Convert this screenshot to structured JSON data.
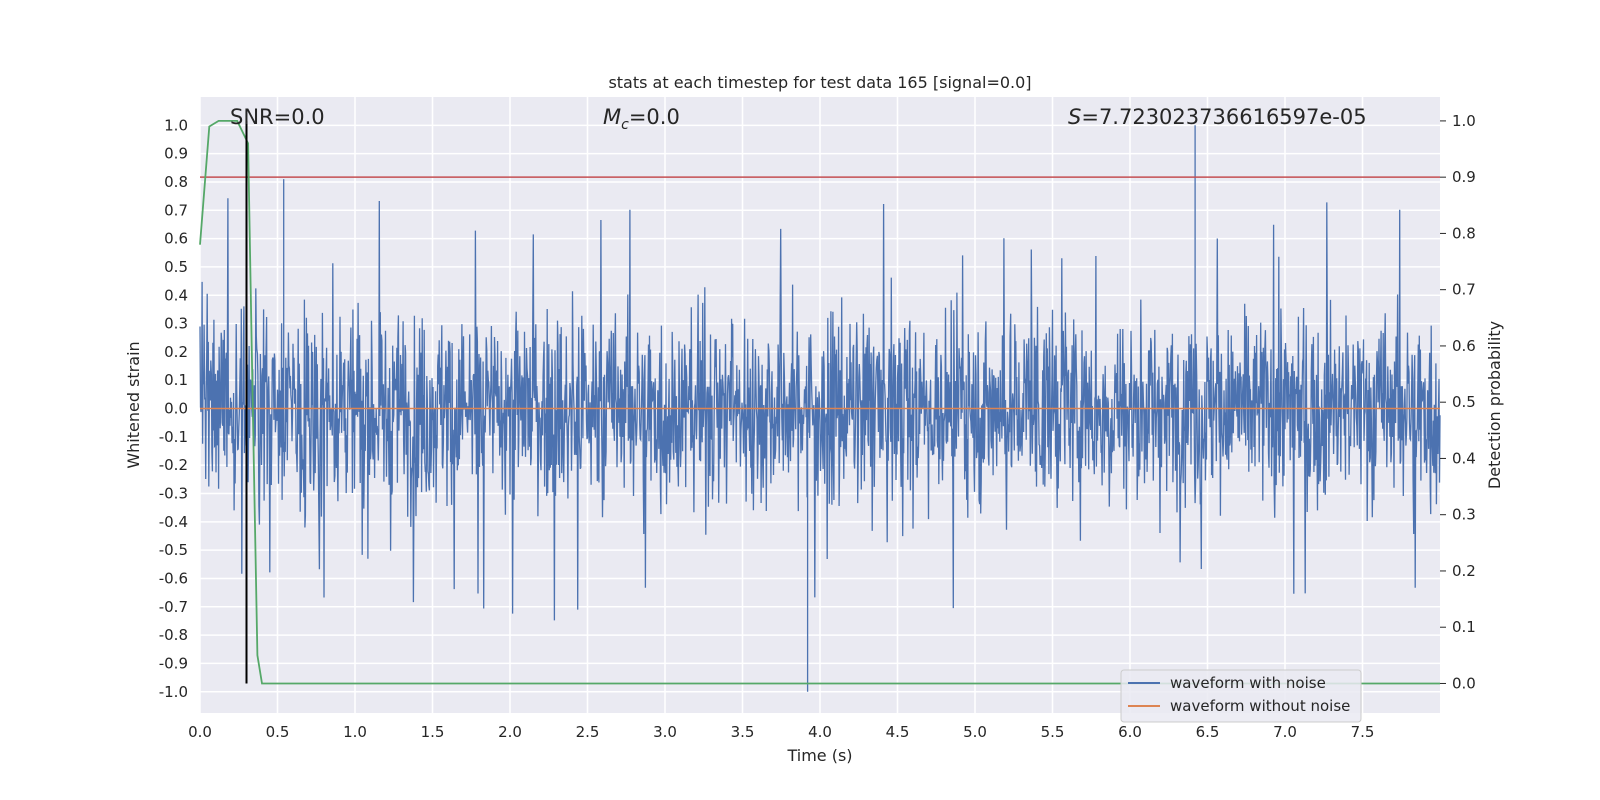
{
  "chart_data": {
    "type": "line",
    "title": "stats at each timestep for test data 165 [signal=0.0]",
    "xlabel": "Time (s)",
    "ylabel": "Whitened strain",
    "y2label": "Detection probability",
    "xlim": [
      0.0,
      8.0
    ],
    "ylim": [
      -1.075,
      1.1
    ],
    "y2lim": [
      -0.0525,
      1.0425
    ],
    "x_ticks": [
      "0.0",
      "0.5",
      "1.0",
      "1.5",
      "2.0",
      "2.5",
      "3.0",
      "3.5",
      "4.0",
      "4.5",
      "5.0",
      "5.5",
      "6.0",
      "6.5",
      "7.0",
      "7.5"
    ],
    "y_ticks": [
      "1.0",
      "0.9",
      "0.8",
      "0.7",
      "0.6",
      "0.5",
      "0.4",
      "0.3",
      "0.2",
      "0.1",
      "0.0",
      "-0.1",
      "-0.2",
      "-0.3",
      "-0.4",
      "-0.5",
      "-0.6",
      "-0.7",
      "-0.8",
      "-0.9",
      "-1.0"
    ],
    "y2_ticks": [
      "1.0",
      "0.9",
      "0.8",
      "0.7",
      "0.6",
      "0.5",
      "0.4",
      "0.3",
      "0.2",
      "0.1",
      "0.0"
    ],
    "grid": true,
    "legend": {
      "position": "lower-right",
      "entries": [
        {
          "name": "waveform with noise",
          "color": "#4c72b0"
        },
        {
          "name": "waveform without noise",
          "color": "#dd8452"
        }
      ]
    },
    "annotations": {
      "snr": "SNR=0.0",
      "mc_symbol": "M",
      "mc_sub": "c",
      "mc_value": "=0.0",
      "s_symbol": "S",
      "s_value": "=7.723023736616597e-05"
    },
    "threshold": {
      "y2": 0.9,
      "color": "#c44e52"
    },
    "marker_line": {
      "x": 0.3,
      "y2_range": [
        0.0,
        1.0
      ],
      "color": "#000000"
    },
    "series": [
      {
        "name": "waveform with noise",
        "color": "#4c72b0",
        "axis": "left",
        "description": "dense noise centered near 0, spikes up to about 1.0 and down to about -1.0",
        "notable_extremes": [
          {
            "x": 0.54,
            "y": 0.81
          },
          {
            "x": 3.92,
            "y": -1.0
          },
          {
            "x": 6.42,
            "y": 1.0
          }
        ]
      },
      {
        "name": "waveform without noise",
        "color": "#dd8452",
        "axis": "left",
        "x": [
          0.0,
          8.0
        ],
        "y": [
          0.0,
          0.0
        ]
      },
      {
        "color": "#55a868",
        "axis": "right",
        "x": [
          0.0,
          0.06,
          0.12,
          0.18,
          0.24,
          0.31,
          0.34,
          0.37,
          0.4,
          8.0
        ],
        "y": [
          0.78,
          0.99,
          1.0,
          1.0,
          1.0,
          0.96,
          0.5,
          0.05,
          0.0,
          0.0
        ]
      }
    ]
  }
}
